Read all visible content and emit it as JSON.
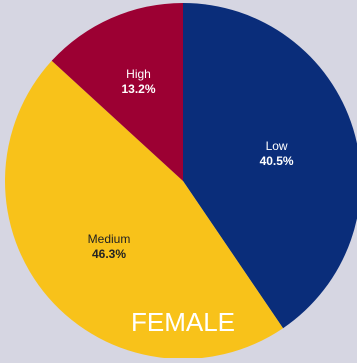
{
  "chart_data": {
    "type": "pie",
    "title": "",
    "caption": "FEMALE",
    "start_angle_deg": 0,
    "direction": "clockwise",
    "slices": [
      {
        "label": "Low",
        "value": 40.5,
        "value_label": "40.5%",
        "color": "#0a2d7a",
        "text_color": "#ffffff"
      },
      {
        "label": "Medium",
        "value": 46.3,
        "value_label": "46.3%",
        "color": "#f8c21a",
        "text_color": "#222222"
      },
      {
        "label": "High",
        "value": 13.2,
        "value_label": "13.2%",
        "color": "#9c0033",
        "text_color": "#ffffff"
      }
    ]
  },
  "colors": {
    "background": "#d6d6e2",
    "caption_text": "#ffffff"
  }
}
